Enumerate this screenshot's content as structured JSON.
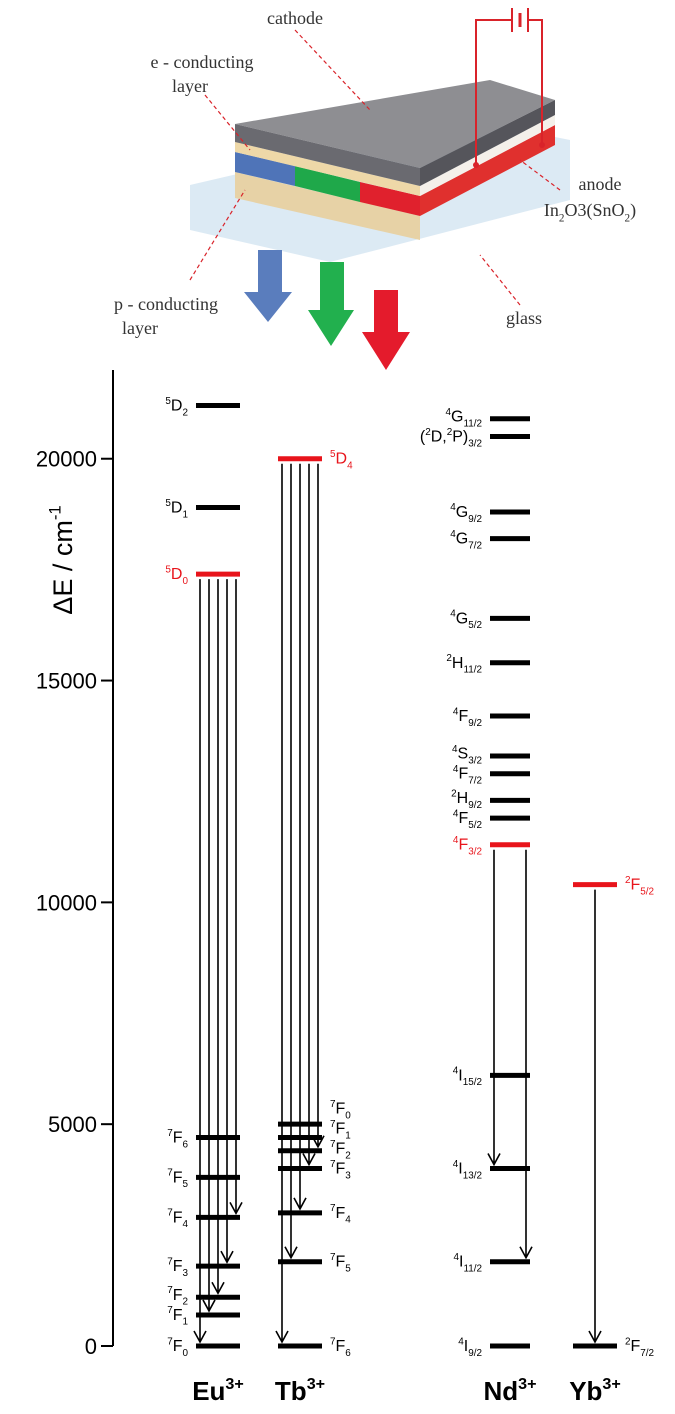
{
  "device": {
    "labels": {
      "cathode": [
        "cathode"
      ],
      "e_layer": [
        "e - conducting",
        "layer"
      ],
      "anode": [
        "anode"
      ],
      "anode_material": [
        {
          "text": "In"
        },
        {
          "sub": "2"
        },
        {
          "text": "O3(SnO"
        },
        {
          "sub": "2"
        },
        {
          "text": ")"
        }
      ],
      "p_layer": [
        "p - conducting",
        "layer"
      ],
      "glass": [
        "glass"
      ]
    }
  },
  "chart_data": {
    "type": "energy-level",
    "ylabel": [
      {
        "text": "ΔE / cm"
      },
      {
        "sup": "-1"
      }
    ],
    "ylim": [
      0,
      22000
    ],
    "yticks": [
      0,
      5000,
      10000,
      15000,
      20000
    ],
    "level_color": "#000000",
    "emitting_color": "#e8141b",
    "ions": [
      {
        "name": [
          {
            "text": "Eu"
          },
          {
            "sup": "3+"
          }
        ],
        "levels": [
          {
            "label": [
              {
                "sup": "5"
              },
              {
                "text": "D"
              },
              {
                "sub": "2"
              }
            ],
            "value": 21200
          },
          {
            "label": [
              {
                "sup": "5"
              },
              {
                "text": "D"
              },
              {
                "sub": "1"
              }
            ],
            "value": 18900
          },
          {
            "label": [
              {
                "sup": "5"
              },
              {
                "text": "D"
              },
              {
                "sub": "0"
              }
            ],
            "value": 17400,
            "emitting": true
          },
          {
            "label": [
              {
                "sup": "7"
              },
              {
                "text": "F"
              },
              {
                "sub": "6"
              }
            ],
            "value": 4700
          },
          {
            "label": [
              {
                "sup": "7"
              },
              {
                "text": "F"
              },
              {
                "sub": "5"
              }
            ],
            "value": 3800
          },
          {
            "label": [
              {
                "sup": "7"
              },
              {
                "text": "F"
              },
              {
                "sub": "4"
              }
            ],
            "value": 2900
          },
          {
            "label": [
              {
                "sup": "7"
              },
              {
                "text": "F"
              },
              {
                "sub": "3"
              }
            ],
            "value": 1800
          },
          {
            "label": [
              {
                "sup": "7"
              },
              {
                "text": "F"
              },
              {
                "sub": "2"
              }
            ],
            "value": 1100
          },
          {
            "label": [
              {
                "sup": "7"
              },
              {
                "text": "F"
              },
              {
                "sub": "1"
              }
            ],
            "value": 700
          },
          {
            "label": [
              {
                "sup": "7"
              },
              {
                "text": "F"
              },
              {
                "sub": "0"
              }
            ],
            "value": 0
          }
        ],
        "transitions": [
          {
            "from": 2,
            "to": 9
          },
          {
            "from": 2,
            "to": 8
          },
          {
            "from": 2,
            "to": 7
          },
          {
            "from": 2,
            "to": 6
          },
          {
            "from": 2,
            "to": 5
          }
        ]
      },
      {
        "name": [
          {
            "text": "Tb"
          },
          {
            "sup": "3+"
          }
        ],
        "levels": [
          {
            "label": [
              {
                "sup": "5"
              },
              {
                "text": "D"
              },
              {
                "sub": "4"
              }
            ],
            "value": 20000,
            "emitting": true
          },
          {
            "label": [
              {
                "sup": "7"
              },
              {
                "text": "F"
              },
              {
                "sub": "0"
              }
            ],
            "value": 5000
          },
          {
            "label": [
              {
                "sup": "7"
              },
              {
                "text": "F"
              },
              {
                "sub": "1"
              }
            ],
            "value": 4700
          },
          {
            "label": [
              {
                "sup": "7"
              },
              {
                "text": "F"
              },
              {
                "sub": "2"
              }
            ],
            "value": 4400
          },
          {
            "label": [
              {
                "sup": "7"
              },
              {
                "text": "F"
              },
              {
                "sub": "3"
              }
            ],
            "value": 4000
          },
          {
            "label": [
              {
                "sup": "7"
              },
              {
                "text": "F"
              },
              {
                "sub": "4"
              }
            ],
            "value": 3000
          },
          {
            "label": [
              {
                "sup": "7"
              },
              {
                "text": "F"
              },
              {
                "sub": "5"
              }
            ],
            "value": 1900
          },
          {
            "label": [
              {
                "sup": "7"
              },
              {
                "text": "F"
              },
              {
                "sub": "6"
              }
            ],
            "value": 0
          }
        ],
        "transitions": [
          {
            "from": 0,
            "to": 7
          },
          {
            "from": 0,
            "to": 6
          },
          {
            "from": 0,
            "to": 5
          },
          {
            "from": 0,
            "to": 4
          },
          {
            "from": 0,
            "to": 3
          }
        ]
      },
      {
        "name": [
          {
            "text": "Nd"
          },
          {
            "sup": "3+"
          }
        ],
        "levels": [
          {
            "label": [
              {
                "sup": "4"
              },
              {
                "text": "G"
              },
              {
                "sub": "11/2"
              }
            ],
            "value": 20900
          },
          {
            "label": [
              {
                "text": "("
              },
              {
                "sup": "2"
              },
              {
                "text": "D,"
              },
              {
                "sup": "2"
              },
              {
                "text": "P)"
              },
              {
                "sub": "3/2"
              }
            ],
            "value": 20500
          },
          {
            "label": [
              {
                "sup": "4"
              },
              {
                "text": "G"
              },
              {
                "sub": "9/2"
              }
            ],
            "value": 18800
          },
          {
            "label": [
              {
                "sup": "4"
              },
              {
                "text": "G"
              },
              {
                "sub": "7/2"
              }
            ],
            "value": 18200
          },
          {
            "label": [
              {
                "sup": "4"
              },
              {
                "text": "G"
              },
              {
                "sub": "5/2"
              }
            ],
            "value": 16400
          },
          {
            "label": [
              {
                "sup": "2"
              },
              {
                "text": "H"
              },
              {
                "sub": "11/2"
              }
            ],
            "value": 15400
          },
          {
            "label": [
              {
                "sup": "4"
              },
              {
                "text": "F"
              },
              {
                "sub": "9/2"
              }
            ],
            "value": 14200
          },
          {
            "label": [
              {
                "sup": "4"
              },
              {
                "text": "S"
              },
              {
                "sub": "3/2"
              }
            ],
            "value": 13300
          },
          {
            "label": [
              {
                "sup": "4"
              },
              {
                "text": "F"
              },
              {
                "sub": "7/2"
              }
            ],
            "value": 12900
          },
          {
            "label": [
              {
                "sup": "2"
              },
              {
                "text": "H"
              },
              {
                "sub": "9/2"
              }
            ],
            "value": 12300
          },
          {
            "label": [
              {
                "sup": "4"
              },
              {
                "text": "F"
              },
              {
                "sub": "5/2"
              }
            ],
            "value": 11900
          },
          {
            "label": [
              {
                "sup": "4"
              },
              {
                "text": "F"
              },
              {
                "sub": "3/2"
              }
            ],
            "value": 11300,
            "emitting": true
          },
          {
            "label": [
              {
                "sup": "4"
              },
              {
                "text": "I"
              },
              {
                "sub": "15/2"
              }
            ],
            "value": 6100
          },
          {
            "label": [
              {
                "sup": "4"
              },
              {
                "text": "I"
              },
              {
                "sub": "13/2"
              }
            ],
            "value": 4000
          },
          {
            "label": [
              {
                "sup": "4"
              },
              {
                "text": "I"
              },
              {
                "sub": "11/2"
              }
            ],
            "value": 1900
          },
          {
            "label": [
              {
                "sup": "4"
              },
              {
                "text": "I"
              },
              {
                "sub": "9/2"
              }
            ],
            "value": 0
          }
        ],
        "transitions": [
          {
            "from": 11,
            "to": 13
          },
          {
            "from": 11,
            "to": 14
          }
        ]
      },
      {
        "name": [
          {
            "text": "Yb"
          },
          {
            "sup": "3+"
          }
        ],
        "levels": [
          {
            "label": [
              {
                "sup": "2"
              },
              {
                "text": "F"
              },
              {
                "sub": "5/2"
              }
            ],
            "value": 10400,
            "emitting": true
          },
          {
            "label": [
              {
                "sup": "2"
              },
              {
                "text": "F"
              },
              {
                "sub": "7/2"
              }
            ],
            "value": 0
          }
        ],
        "transitions": [
          {
            "from": 0,
            "to": 1
          }
        ]
      }
    ]
  }
}
